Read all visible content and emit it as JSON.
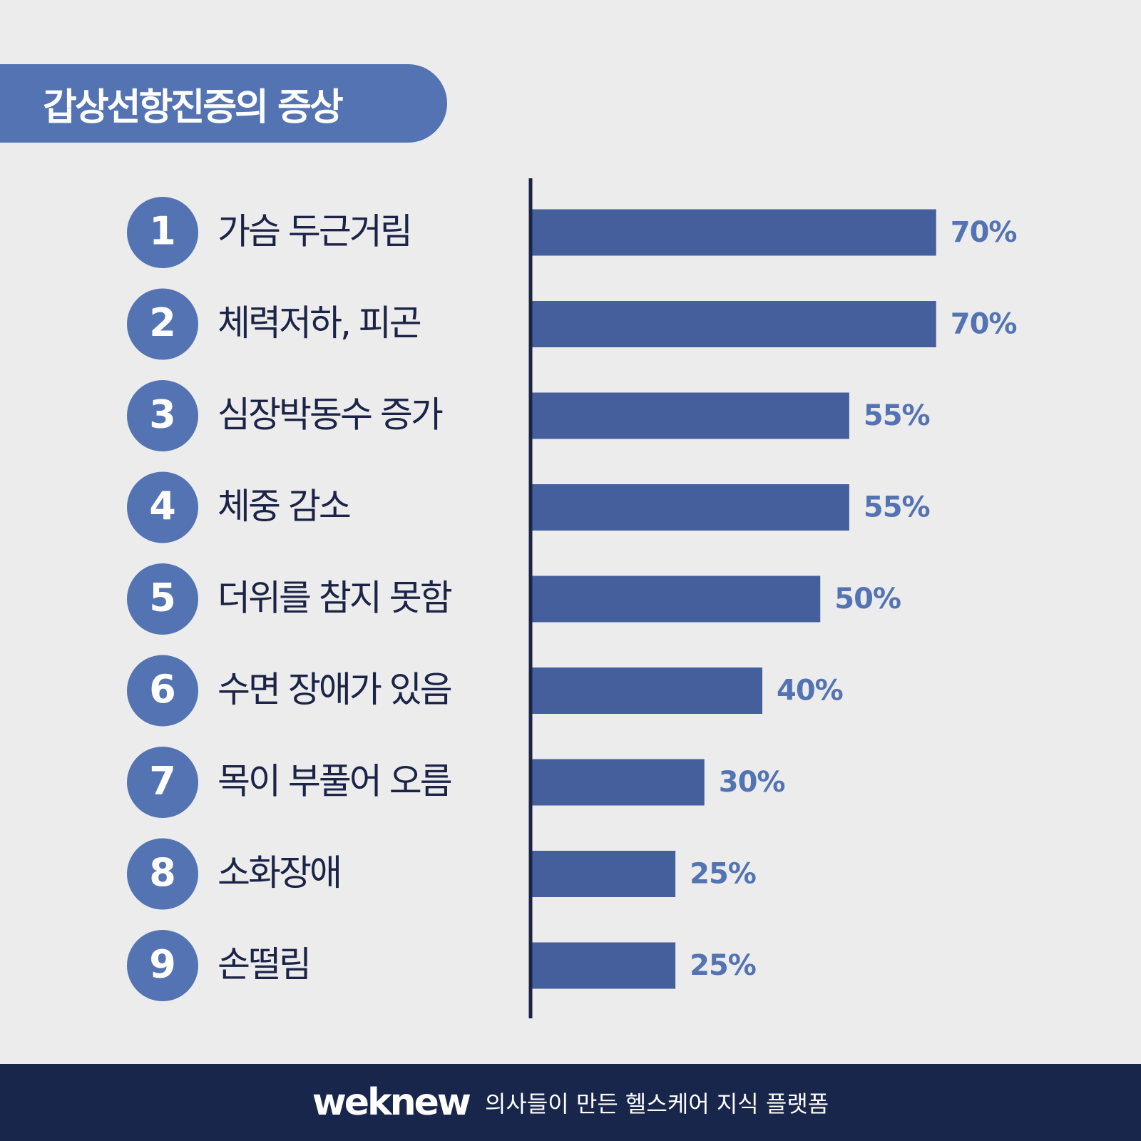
{
  "title": "갑상선항진증의 증상",
  "colors": {
    "background": "#ececec",
    "accent": "#5473b2",
    "bar": "#445f9c",
    "value_text": "#5473b2",
    "label_text": "#1b2447",
    "axis": "#1b2447",
    "footer": "#19264b"
  },
  "chart_data": {
    "type": "bar",
    "orientation": "horizontal",
    "categories": [
      "가슴 두근거림",
      "체력저하, 피곤",
      "심장박동수 증가",
      "체중 감소",
      "더위를 참지 못함",
      "수면 장애가 있음",
      "목이 부풀어 오름",
      "소화장애",
      "손떨림"
    ],
    "ranks": [
      "1",
      "2",
      "3",
      "4",
      "5",
      "6",
      "7",
      "8",
      "9"
    ],
    "values": [
      70,
      70,
      55,
      55,
      50,
      40,
      30,
      25,
      25
    ],
    "value_labels": [
      "70%",
      "70%",
      "55%",
      "55%",
      "50%",
      "40%",
      "30%",
      "25%",
      "25%"
    ],
    "unit": "%",
    "xlim": [
      0,
      100
    ],
    "grid": false,
    "legend": "none"
  },
  "footer": {
    "logo": "weknew",
    "tagline": "의사들이 만든 헬스케어 지식 플랫폼"
  }
}
